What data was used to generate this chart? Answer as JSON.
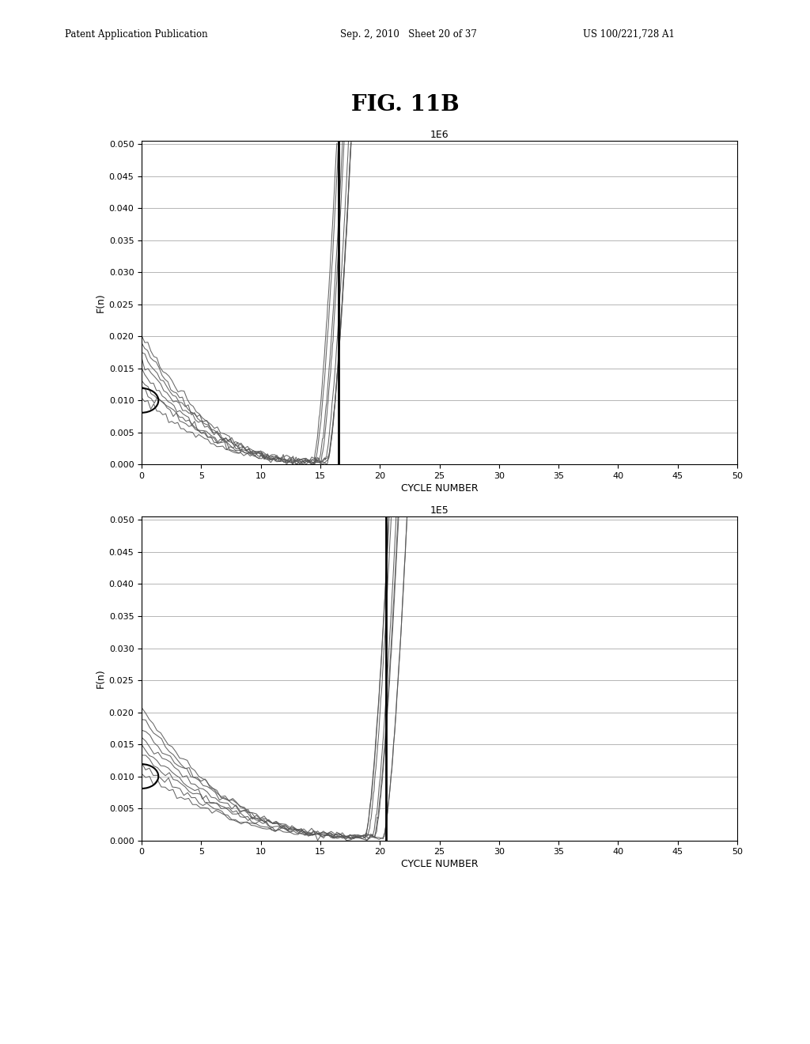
{
  "fig_title": "FIG. 11B",
  "chart1_title": "1E6",
  "chart2_title": "1E5",
  "xlabel": "CYCLE NUMBER",
  "ylabel": "F(n)",
  "xlim": [
    0,
    50
  ],
  "ylim": [
    0.0,
    0.05
  ],
  "yticks": [
    0.0,
    0.005,
    0.01,
    0.015,
    0.02,
    0.025,
    0.03,
    0.035,
    0.04,
    0.045,
    0.05
  ],
  "xticks": [
    0,
    5,
    10,
    15,
    20,
    25,
    30,
    35,
    40,
    45,
    50
  ],
  "circle_value": 0.01,
  "chart1_vline": 16.5,
  "chart2_vline": 20.5,
  "num_curves": 8,
  "patent_line1": "Patent Application Publication",
  "patent_line2": "Sep. 2, 2010   Sheet 20 of 37",
  "patent_line3": "US 100/221,728 A1"
}
